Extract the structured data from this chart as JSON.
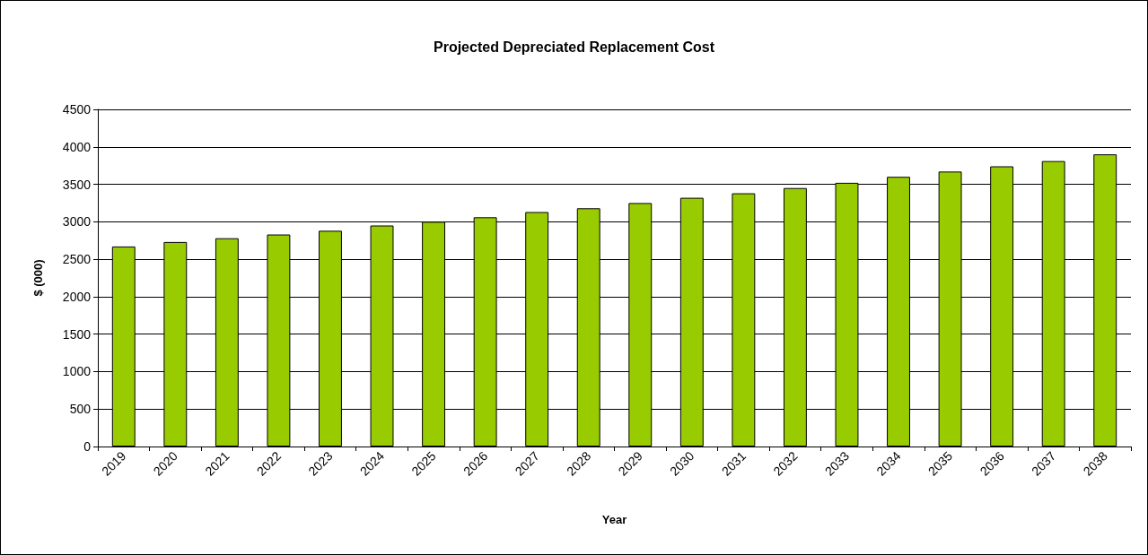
{
  "chart_data": {
    "type": "bar",
    "title": "Projected Depreciated Replacement Cost",
    "xlabel": "Year",
    "ylabel": "$ (000)",
    "categories": [
      "2019",
      "2020",
      "2021",
      "2022",
      "2023",
      "2024",
      "2025",
      "2026",
      "2027",
      "2028",
      "2029",
      "2030",
      "2031",
      "2032",
      "2033",
      "2034",
      "2035",
      "2036",
      "2037",
      "2038"
    ],
    "values": [
      2670,
      2730,
      2780,
      2830,
      2880,
      2950,
      3000,
      3060,
      3130,
      3180,
      3250,
      3320,
      3380,
      3450,
      3520,
      3600,
      3670,
      3740,
      3810,
      3900
    ],
    "color": "#99cc00",
    "ylim": [
      0,
      4500
    ],
    "yticks": [
      0,
      500,
      1000,
      1500,
      2000,
      2500,
      3000,
      3500,
      4000,
      4500
    ],
    "grid": "y"
  }
}
